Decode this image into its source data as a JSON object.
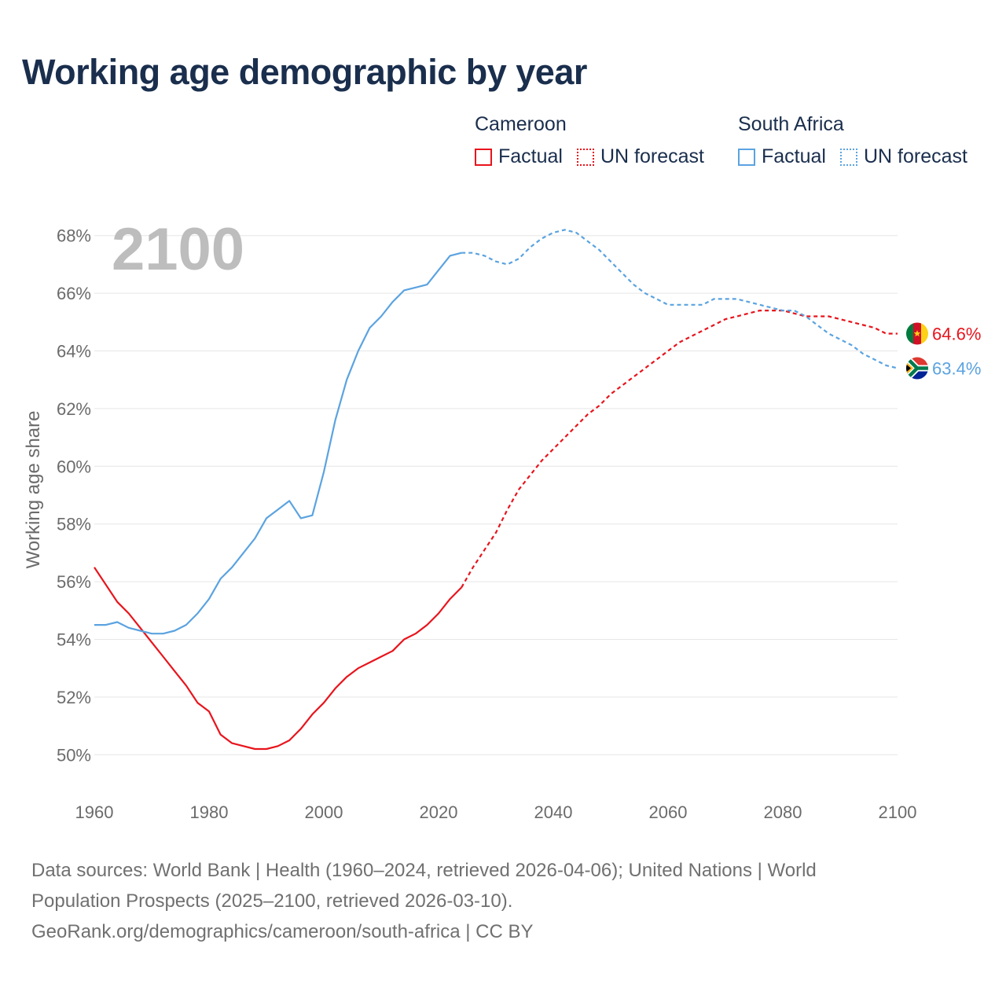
{
  "title": "Working age demographic by year",
  "legend": {
    "groups": [
      {
        "name": "Cameroon",
        "factual_label": "Factual",
        "forecast_label": "UN forecast",
        "color": "#e8141c"
      },
      {
        "name": "South Africa",
        "factual_label": "Factual",
        "forecast_label": "UN forecast",
        "color": "#5ba3e0"
      }
    ]
  },
  "source": {
    "line1": "Data sources: World Bank | Health (1960–2024, retrieved 2026-04-06); United Nations | World",
    "line2": "Population Prospects (2025–2100, retrieved 2026-03-10).",
    "line3": "GeoRank.org/demographics/cameroon/south-africa | CC BY"
  },
  "chart_data": {
    "type": "line",
    "title": "Working age demographic by year",
    "ylabel": "Working age share",
    "xlabel": "",
    "year_display": "2100",
    "xlim": [
      1960,
      2100
    ],
    "ylim": [
      49,
      69
    ],
    "x_ticks": [
      1960,
      1980,
      2000,
      2020,
      2040,
      2060,
      2080,
      2100
    ],
    "y_ticks": [
      50,
      52,
      54,
      56,
      58,
      60,
      62,
      64,
      66,
      68
    ],
    "y_tick_labels": [
      "50%",
      "52%",
      "54%",
      "56%",
      "58%",
      "60%",
      "62%",
      "64%",
      "66%",
      "68%"
    ],
    "forecast_start": 2024,
    "series": [
      {
        "name": "Cameroon",
        "color": "#e8141c",
        "end_label": "64.6%",
        "flag": "cameroon",
        "x": [
          1960,
          1962,
          1964,
          1966,
          1968,
          1970,
          1972,
          1974,
          1976,
          1978,
          1980,
          1982,
          1984,
          1986,
          1988,
          1990,
          1992,
          1994,
          1996,
          1998,
          2000,
          2002,
          2004,
          2006,
          2008,
          2010,
          2012,
          2014,
          2016,
          2018,
          2020,
          2022,
          2024,
          2026,
          2028,
          2030,
          2032,
          2034,
          2036,
          2038,
          2040,
          2042,
          2044,
          2046,
          2048,
          2050,
          2052,
          2054,
          2056,
          2058,
          2060,
          2062,
          2064,
          2066,
          2068,
          2070,
          2072,
          2074,
          2076,
          2078,
          2080,
          2082,
          2084,
          2086,
          2088,
          2090,
          2092,
          2094,
          2096,
          2098,
          2100
        ],
        "values": [
          56.5,
          55.9,
          55.3,
          54.9,
          54.4,
          53.9,
          53.4,
          52.9,
          52.4,
          51.8,
          51.5,
          50.7,
          50.4,
          50.3,
          50.2,
          50.2,
          50.3,
          50.5,
          50.9,
          51.4,
          51.8,
          52.3,
          52.7,
          53.0,
          53.2,
          53.4,
          53.6,
          54.0,
          54.2,
          54.5,
          54.9,
          55.4,
          55.8,
          56.5,
          57.1,
          57.7,
          58.5,
          59.2,
          59.7,
          60.2,
          60.6,
          61.0,
          61.4,
          61.8,
          62.1,
          62.5,
          62.8,
          63.1,
          63.4,
          63.7,
          64.0,
          64.3,
          64.5,
          64.7,
          64.9,
          65.1,
          65.2,
          65.3,
          65.4,
          65.4,
          65.4,
          65.3,
          65.2,
          65.2,
          65.2,
          65.1,
          65.0,
          64.9,
          64.8,
          64.6,
          64.6
        ]
      },
      {
        "name": "South Africa",
        "color": "#5ba3e0",
        "end_label": "63.4%",
        "flag": "south-africa",
        "x": [
          1960,
          1962,
          1964,
          1966,
          1968,
          1970,
          1972,
          1974,
          1976,
          1978,
          1980,
          1982,
          1984,
          1986,
          1988,
          1990,
          1992,
          1994,
          1996,
          1998,
          2000,
          2002,
          2004,
          2006,
          2008,
          2010,
          2012,
          2014,
          2016,
          2018,
          2020,
          2022,
          2024,
          2026,
          2028,
          2030,
          2032,
          2034,
          2036,
          2038,
          2040,
          2042,
          2044,
          2046,
          2048,
          2050,
          2052,
          2054,
          2056,
          2058,
          2060,
          2062,
          2064,
          2066,
          2068,
          2070,
          2072,
          2074,
          2076,
          2078,
          2080,
          2082,
          2084,
          2086,
          2088,
          2090,
          2092,
          2094,
          2096,
          2098,
          2100
        ],
        "values": [
          54.5,
          54.5,
          54.6,
          54.4,
          54.3,
          54.2,
          54.2,
          54.3,
          54.5,
          54.9,
          55.4,
          56.1,
          56.5,
          57.0,
          57.5,
          58.2,
          58.5,
          58.8,
          58.2,
          58.3,
          59.8,
          61.6,
          63.0,
          64.0,
          64.8,
          65.2,
          65.7,
          66.1,
          66.2,
          66.3,
          66.8,
          67.3,
          67.4,
          67.4,
          67.3,
          67.1,
          67.0,
          67.2,
          67.6,
          67.9,
          68.1,
          68.2,
          68.1,
          67.8,
          67.5,
          67.1,
          66.7,
          66.3,
          66.0,
          65.8,
          65.6,
          65.6,
          65.6,
          65.6,
          65.8,
          65.8,
          65.8,
          65.7,
          65.6,
          65.5,
          65.4,
          65.4,
          65.2,
          64.9,
          64.6,
          64.4,
          64.2,
          63.9,
          63.7,
          63.5,
          63.4
        ]
      }
    ]
  }
}
